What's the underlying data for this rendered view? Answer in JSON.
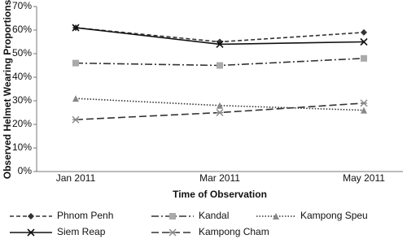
{
  "chart_data": {
    "type": "line",
    "x_label": "Time of Observation",
    "y_label": "Observed Helmet Wearing Proportions",
    "categories": [
      "Jan 2011",
      "Mar 2011",
      "May 2011"
    ],
    "ylim": [
      0,
      70
    ],
    "yticks": [
      {
        "value": 0,
        "label": "0%"
      },
      {
        "value": 10,
        "label": "10%"
      },
      {
        "value": 20,
        "label": "20%"
      },
      {
        "value": 30,
        "label": "30%"
      },
      {
        "value": 40,
        "label": "40%"
      },
      {
        "value": 50,
        "label": "50%"
      },
      {
        "value": 60,
        "label": "60%"
      },
      {
        "value": 70,
        "label": "70%"
      }
    ],
    "grid": false,
    "series": [
      {
        "name": "Phnom Penh",
        "color": "#333333",
        "dash": "5,3",
        "marker": "diamond",
        "values": [
          61,
          55,
          59
        ]
      },
      {
        "name": "Kandal",
        "color": "#333333",
        "dash": "9,3,2,3",
        "marker": "square",
        "markerColor": "#aaaaaa",
        "values": [
          46,
          45,
          48
        ]
      },
      {
        "name": "Kampong Speu",
        "color": "#333333",
        "dash": "1.5,2",
        "marker": "triangle",
        "markerColor": "#888888",
        "values": [
          31,
          28,
          26
        ]
      },
      {
        "name": "Siem Reap",
        "color": "#111111",
        "dash": "",
        "marker": "x",
        "values": [
          61,
          54,
          55
        ]
      },
      {
        "name": "Kampong Cham",
        "color": "#333333",
        "dash": "9,4",
        "marker": "asterisk",
        "markerColor": "#888888",
        "values": [
          22,
          25,
          29
        ]
      }
    ]
  }
}
